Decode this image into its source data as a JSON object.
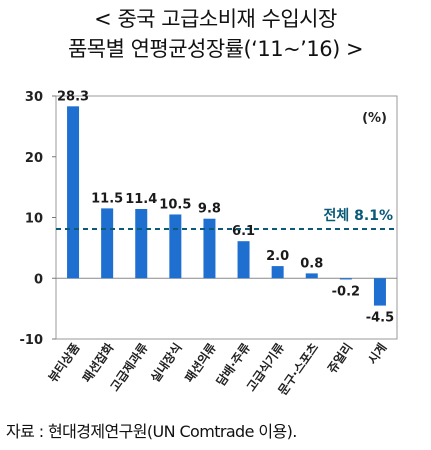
{
  "title_line1": "< 중국 고급소비재 수입시장",
  "title_line2": "품목별 연평균성장률(‘11~’16) >",
  "source": "자료 : 현대경제연구원(UN Comtrade 이용).",
  "chart_data": {
    "type": "bar",
    "categories": [
      "뷰티상품",
      "패션잡화",
      "고급제과류",
      "실내장식",
      "패션의류",
      "담배·주류",
      "고급식기류",
      "문구·스포츠",
      "쥬얼리",
      "시계"
    ],
    "values": [
      28.3,
      11.5,
      11.4,
      10.5,
      9.8,
      6.1,
      2.0,
      0.8,
      -0.2,
      -4.5
    ],
    "value_labels": [
      "28.3",
      "11.5",
      "11.4",
      "10.5",
      "9.8",
      "6.1",
      "2.0",
      "0.8",
      "-0.2",
      "-4.5"
    ],
    "unit_label": "(%)",
    "ylim": [
      -10,
      30
    ],
    "yticks": [
      -10,
      0,
      10,
      20,
      30
    ],
    "reference_line": {
      "value": 8.1,
      "label": "전체 8.1%",
      "style": "dashed"
    },
    "grid": false,
    "bar_color": "#1f6fd0",
    "reference_color": "#0a5a78",
    "label_color": "#1a1a1a"
  }
}
